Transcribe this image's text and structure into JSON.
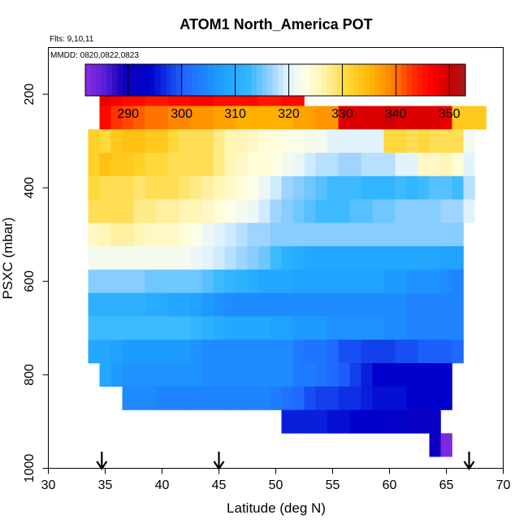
{
  "chart_data": {
    "type": "heatmap",
    "title": "ATOM1 North_America POT",
    "subtitle_flights": "Flts: 9,10,11",
    "subtitle_dates": "MMDD: 0820,0822,0823",
    "xlabel": "Latitude (deg N)",
    "ylabel": "PSXC (mbar)",
    "xlim": [
      30,
      70
    ],
    "ylim": [
      1000,
      100
    ],
    "x_ticks": [
      "30",
      "35",
      "40",
      "45",
      "50",
      "55",
      "60",
      "65",
      "70"
    ],
    "y_ticks": [
      "200",
      "400",
      "600",
      "800",
      "1000"
    ],
    "colorbar": {
      "range": [
        282,
        353
      ],
      "ticks": [
        "290",
        "300",
        "310",
        "320",
        "330",
        "340",
        "350"
      ]
    },
    "bin_size": {
      "lat_deg": 1,
      "pressure_mbar": 50
    },
    "arrow_latitudes": [
      34.7,
      45,
      67
    ],
    "rows": [
      {
        "p": 200,
        "lat": [
          35,
          53
        ],
        "values": [
          348,
          347,
          346,
          346,
          345,
          345,
          346,
          346,
          347,
          347,
          346,
          346,
          346,
          346,
          345,
          345,
          346,
          346
        ]
      },
      {
        "p": 250,
        "lat": [
          35,
          69
        ],
        "values": [
          346,
          343,
          342,
          341,
          340,
          340,
          339,
          339,
          338,
          338,
          337,
          337,
          336,
          336,
          336,
          336,
          336,
          337,
          337,
          338,
          338,
          349,
          349,
          349,
          349,
          350,
          349,
          349,
          349,
          349,
          348,
          333,
          333,
          333
        ]
      },
      {
        "p": 300,
        "lat": [
          34,
          68
        ],
        "values": [
          332,
          331,
          333,
          334,
          334,
          333,
          333,
          331,
          330,
          330,
          330,
          328,
          326,
          326,
          325,
          324,
          324,
          323,
          323,
          322,
          322,
          320,
          320,
          320,
          320,
          320,
          331,
          331,
          330,
          331,
          330,
          330,
          330,
          322
        ]
      },
      {
        "p": 350,
        "lat": [
          34,
          68
        ],
        "values": [
          332,
          334,
          333,
          333,
          332,
          331,
          331,
          330,
          330,
          330,
          330,
          328,
          326,
          325,
          324,
          324,
          323,
          322,
          321,
          319,
          318,
          318,
          317,
          317,
          318,
          318,
          318,
          320,
          320,
          325,
          325,
          326,
          324,
          320
        ]
      },
      {
        "p": 400,
        "lat": [
          34,
          68
        ],
        "values": [
          331,
          330,
          330,
          330,
          329,
          330,
          330,
          330,
          329,
          328,
          327,
          326,
          325,
          324,
          323,
          321,
          319,
          317,
          316,
          315,
          314,
          313,
          313,
          313,
          312,
          312,
          312,
          313,
          312,
          313,
          314,
          314,
          313,
          318
        ]
      },
      {
        "p": 450,
        "lat": [
          34,
          68
        ],
        "values": [
          330,
          330,
          330,
          330,
          328,
          328,
          327,
          327,
          326,
          326,
          325,
          324,
          323,
          322,
          321,
          319,
          317,
          316,
          315,
          314,
          313,
          313,
          313,
          314,
          314,
          315,
          315,
          316,
          316,
          316,
          316,
          317,
          317,
          320
        ]
      },
      {
        "p": 500,
        "lat": [
          34,
          67
        ],
        "values": [
          325,
          326,
          327,
          327,
          326,
          325,
          325,
          325,
          324,
          323,
          321,
          320,
          319,
          318,
          317,
          317,
          316,
          316,
          316,
          316,
          316,
          316,
          316,
          316,
          316,
          316,
          316,
          316,
          316,
          316,
          316,
          316,
          316
        ]
      },
      {
        "p": 550,
        "lat": [
          34,
          67
        ],
        "values": [
          322,
          322,
          322,
          322,
          322,
          322,
          322,
          322,
          322,
          321,
          320,
          319,
          318,
          317,
          316,
          315,
          313,
          311,
          310,
          309,
          309,
          309,
          309,
          309,
          309,
          309,
          309,
          309,
          309,
          309,
          309,
          308,
          308
        ]
      },
      {
        "p": 600,
        "lat": [
          34,
          67
        ],
        "values": [
          316,
          316,
          316,
          316,
          316,
          315,
          315,
          315,
          315,
          315,
          314,
          313,
          312,
          311,
          310,
          309,
          309,
          309,
          308,
          308,
          308,
          308,
          308,
          308,
          308,
          308,
          307,
          307,
          306,
          306,
          306,
          305,
          304
        ]
      },
      {
        "p": 650,
        "lat": [
          34,
          67
        ],
        "values": [
          311,
          311,
          311,
          311,
          311,
          310,
          310,
          309,
          309,
          308,
          307,
          306,
          305,
          305,
          305,
          305,
          305,
          305,
          305,
          305,
          305,
          305,
          305,
          305,
          305,
          305,
          305,
          305,
          304,
          304,
          304,
          304,
          304
        ]
      },
      {
        "p": 700,
        "lat": [
          34,
          67
        ],
        "values": [
          313,
          313,
          313,
          313,
          313,
          313,
          313,
          313,
          313,
          312,
          311,
          310,
          309,
          309,
          309,
          309,
          308,
          308,
          307,
          307,
          307,
          306,
          306,
          306,
          306,
          306,
          305,
          305,
          304,
          304,
          304,
          304,
          304
        ]
      },
      {
        "p": 750,
        "lat": [
          34,
          67
        ],
        "values": [
          309,
          309,
          308,
          307,
          307,
          307,
          307,
          307,
          307,
          306,
          305,
          305,
          305,
          305,
          305,
          305,
          305,
          305,
          303,
          302,
          302,
          301,
          299,
          299,
          298,
          298,
          298,
          299,
          299,
          300,
          300,
          300,
          301
        ]
      },
      {
        "p": 800,
        "lat": [
          35,
          66
        ],
        "values": [
          309,
          307,
          306,
          306,
          306,
          306,
          306,
          306,
          306,
          305,
          305,
          305,
          305,
          305,
          305,
          305,
          305,
          303,
          303,
          302,
          301,
          300,
          298,
          296,
          294,
          294,
          294,
          294,
          294,
          294,
          294
        ]
      },
      {
        "p": 850,
        "lat": [
          37,
          66
        ],
        "values": [
          305,
          305,
          305,
          304,
          304,
          304,
          304,
          304,
          304,
          304,
          304,
          304,
          304,
          303,
          302,
          301,
          299,
          298,
          298,
          297,
          297,
          296,
          295,
          295,
          295,
          294,
          294,
          294,
          294
        ]
      },
      {
        "p": 900,
        "lat": [
          51,
          65
        ],
        "values": [
          296,
          296,
          296,
          296,
          295,
          295,
          294,
          294,
          294,
          293,
          293,
          292,
          292,
          292
        ]
      },
      {
        "p": 950,
        "lat": [
          64,
          65
        ],
        "values": [
          291,
          283
        ]
      }
    ]
  }
}
